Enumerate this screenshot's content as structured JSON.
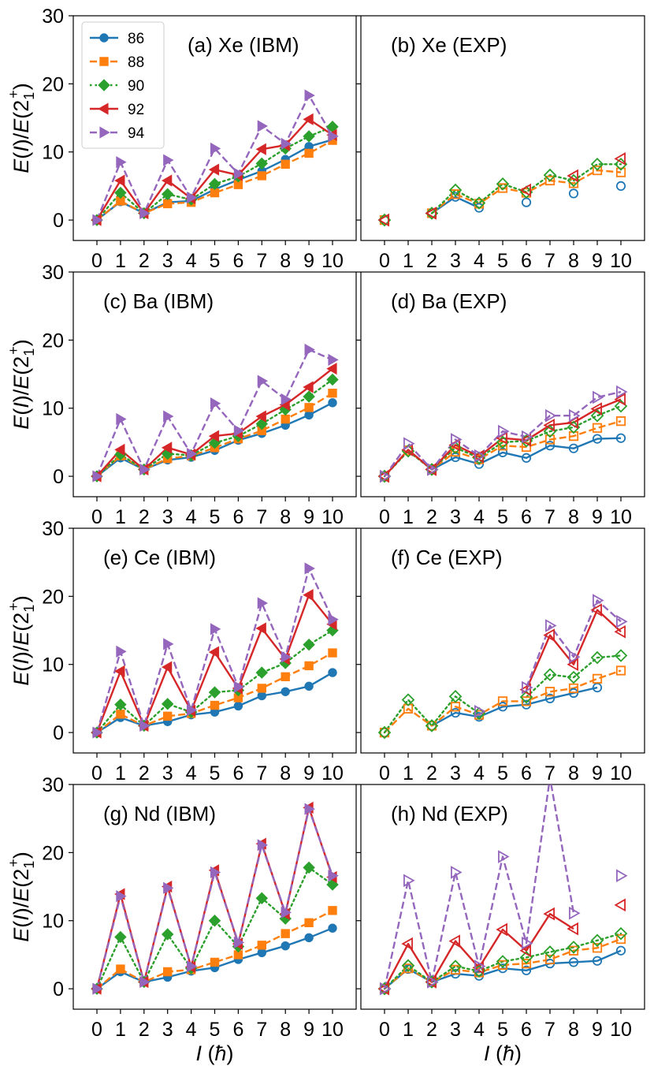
{
  "chart_data": {
    "type": "line",
    "xlabel": "I (ħ)",
    "ylabel": "E(I)/E(2_1^+)",
    "x": [
      0,
      1,
      2,
      3,
      4,
      5,
      6,
      7,
      8,
      9,
      10
    ],
    "xticks": [
      "0",
      "1",
      "2",
      "3",
      "4",
      "5",
      "6",
      "7",
      "8",
      "9",
      "10"
    ],
    "ylim": [
      -3,
      30
    ],
    "yticks": [
      0,
      10,
      20,
      30
    ],
    "ytick_labels": [
      "0",
      "10",
      "20",
      "30"
    ],
    "legend": {
      "location": "top-left of panel (a)",
      "entries": [
        {
          "name": "86",
          "color": "#1f77b4",
          "marker": "circle",
          "linestyle": "solid"
        },
        {
          "name": "88",
          "color": "#ff7f0e",
          "marker": "square",
          "linestyle": "dashed"
        },
        {
          "name": "90",
          "color": "#2ca02c",
          "marker": "diamond",
          "linestyle": "dotted"
        },
        {
          "name": "92",
          "color": "#d62728",
          "marker": "triangle-left",
          "linestyle": "solid"
        },
        {
          "name": "94",
          "color": "#9467bd",
          "marker": "triangle-right",
          "linestyle": "dashed"
        }
      ]
    },
    "panels": [
      {
        "title": "(a) Xe (IBM)",
        "filled": true,
        "series": [
          {
            "name": "86",
            "values": [
              0,
              2.7,
              1,
              2.6,
              2.8,
              4.5,
              5.9,
              7.2,
              8.9,
              10.8,
              11.8
            ]
          },
          {
            "name": "88",
            "values": [
              0,
              2.8,
              1,
              2.4,
              2.6,
              4.0,
              5.2,
              6.5,
              8.2,
              9.8,
              11.7
            ]
          },
          {
            "name": "90",
            "values": [
              0,
              4.0,
              1,
              3.8,
              3.0,
              5.3,
              6.4,
              8.3,
              10.5,
              12.3,
              13.7
            ]
          },
          {
            "name": "92",
            "values": [
              0,
              5.8,
              1,
              5.8,
              3.2,
              7.4,
              6.6,
              10.4,
              11.0,
              14.8,
              12.5
            ]
          },
          {
            "name": "94",
            "values": [
              0,
              8.5,
              1,
              8.8,
              3.3,
              10.5,
              6.8,
              13.8,
              11.2,
              18.3,
              12.3
            ]
          }
        ]
      },
      {
        "title": "(b) Xe (EXP)",
        "filled": false,
        "series": [
          {
            "name": "86",
            "values": [
              0,
              null,
              1,
              3.4,
              1.8,
              null,
              2.6,
              null,
              3.9,
              null,
              5.0
            ]
          },
          {
            "name": "88",
            "values": [
              0,
              null,
              1,
              3.8,
              2.4,
              4.7,
              4.0,
              5.8,
              5.4,
              7.3,
              7.0
            ]
          },
          {
            "name": "90",
            "values": [
              0,
              null,
              1,
              4.4,
              2.5,
              5.3,
              4.1,
              6.6,
              5.8,
              8.2,
              8.2
            ]
          },
          {
            "name": "92",
            "values": [
              0,
              null,
              1,
              null,
              null,
              null,
              4.4,
              null,
              6.5,
              null,
              9.0
            ]
          },
          {
            "name": "94",
            "values": [
              null,
              null,
              null,
              null,
              null,
              null,
              null,
              null,
              null,
              null,
              null
            ]
          }
        ]
      },
      {
        "title": "(c) Ba (IBM)",
        "filled": true,
        "series": [
          {
            "name": "86",
            "values": [
              0,
              2.7,
              1,
              2.4,
              2.8,
              3.8,
              5.3,
              6.3,
              7.5,
              9.0,
              10.8
            ]
          },
          {
            "name": "88",
            "values": [
              0,
              3.0,
              1,
              2.6,
              3.0,
              4.2,
              5.5,
              6.7,
              8.4,
              10.1,
              12.2
            ]
          },
          {
            "name": "90",
            "values": [
              0,
              3.2,
              1,
              3.3,
              3.1,
              4.9,
              5.9,
              7.7,
              9.8,
              11.7,
              14.2
            ]
          },
          {
            "name": "92",
            "values": [
              0,
              3.9,
              1,
              4.2,
              3.2,
              5.9,
              6.3,
              8.8,
              10.5,
              13.1,
              15.8
            ]
          },
          {
            "name": "94",
            "values": [
              0,
              8.4,
              1,
              8.8,
              3.3,
              10.7,
              6.7,
              14.0,
              11.3,
              18.6,
              17.1
            ]
          }
        ]
      },
      {
        "title": "(d) Ba (EXP)",
        "filled": false,
        "series": [
          {
            "name": "86",
            "values": [
              0,
              null,
              1,
              2.8,
              1.8,
              3.5,
              2.7,
              4.5,
              4.1,
              5.5,
              5.6
            ]
          },
          {
            "name": "88",
            "values": [
              0,
              3.8,
              1,
              3.6,
              2.5,
              4.5,
              4.3,
              5.4,
              5.9,
              7.1,
              8.1
            ]
          },
          {
            "name": "90",
            "values": [
              0,
              3.7,
              1,
              4.2,
              2.7,
              5.0,
              5.2,
              6.6,
              7.2,
              8.9,
              10.3
            ]
          },
          {
            "name": "92",
            "values": [
              0,
              3.9,
              1,
              4.6,
              2.9,
              5.6,
              5.3,
              7.5,
              7.9,
              9.9,
              11.3
            ]
          },
          {
            "name": "94",
            "values": [
              0,
              4.8,
              1,
              5.4,
              3.0,
              6.6,
              5.8,
              8.9,
              8.9,
              11.6,
              12.4
            ]
          }
        ]
      },
      {
        "title": "(e) Ce (IBM)",
        "filled": true,
        "series": [
          {
            "name": "86",
            "values": [
              0,
              2.2,
              1,
              1.6,
              2.6,
              3.0,
              3.9,
              5.4,
              6.0,
              6.8,
              8.8
            ]
          },
          {
            "name": "88",
            "values": [
              0,
              2.7,
              1,
              2.4,
              2.8,
              4.0,
              5.1,
              6.5,
              8.2,
              9.8,
              11.7
            ]
          },
          {
            "name": "90",
            "values": [
              0,
              4.1,
              1,
              4.2,
              3.0,
              5.9,
              6.2,
              8.8,
              10.2,
              12.9,
              15.0
            ]
          },
          {
            "name": "92",
            "values": [
              0,
              9.0,
              1,
              9.6,
              3.2,
              11.8,
              6.5,
              15.3,
              10.8,
              20.2,
              15.9
            ]
          },
          {
            "name": "94",
            "values": [
              0,
              11.9,
              1,
              13.0,
              3.3,
              15.2,
              6.7,
              19.0,
              11.1,
              24.1,
              16.6
            ]
          }
        ]
      },
      {
        "title": "(f) Ce (EXP)",
        "filled": false,
        "series": [
          {
            "name": "86",
            "values": [
              0,
              null,
              1,
              2.9,
              2.3,
              3.8,
              4.1,
              5.0,
              5.8,
              6.6,
              null
            ]
          },
          {
            "name": "88",
            "values": [
              0,
              3.5,
              1,
              3.8,
              2.6,
              4.6,
              4.6,
              6.0,
              6.5,
              7.9,
              9.1
            ]
          },
          {
            "name": "90",
            "values": [
              0,
              4.8,
              1,
              5.3,
              2.8,
              null,
              5.2,
              8.5,
              8.1,
              11.0,
              11.3
            ]
          },
          {
            "name": "92",
            "values": [
              null,
              null,
              null,
              null,
              null,
              null,
              6.3,
              14.3,
              10.0,
              18.0,
              14.8
            ]
          },
          {
            "name": "94",
            "values": [
              null,
              null,
              null,
              null,
              3.1,
              null,
              6.6,
              15.7,
              11.1,
              19.4,
              16.3
            ]
          }
        ]
      },
      {
        "title": "(g) Nd (IBM)",
        "filled": true,
        "series": [
          {
            "name": "86",
            "values": [
              0,
              2.5,
              1,
              1.7,
              2.6,
              3.1,
              4.3,
              5.3,
              6.3,
              7.5,
              8.9
            ]
          },
          {
            "name": "88",
            "values": [
              0,
              2.9,
              1,
              2.5,
              2.8,
              3.9,
              5.0,
              6.4,
              8.1,
              9.7,
              11.5
            ]
          },
          {
            "name": "90",
            "values": [
              0,
              7.6,
              1,
              8.0,
              3.0,
              10.0,
              6.2,
              13.3,
              10.3,
              17.8,
              15.3
            ]
          },
          {
            "name": "92",
            "values": [
              0,
              13.9,
              1,
              15.0,
              3.2,
              17.4,
              6.6,
              21.3,
              11.0,
              26.6,
              16.4
            ]
          },
          {
            "name": "94",
            "values": [
              0,
              13.6,
              1,
              14.8,
              3.3,
              17.1,
              6.8,
              21.1,
              11.2,
              26.4,
              16.6
            ]
          }
        ]
      },
      {
        "title": "(h) Nd (EXP)",
        "filled": false,
        "series": [
          {
            "name": "86",
            "values": [
              0,
              2.9,
              1,
              2.2,
              1.9,
              3.0,
              2.7,
              3.7,
              3.9,
              4.1,
              5.6
            ]
          },
          {
            "name": "88",
            "values": [
              0,
              3.0,
              1,
              2.8,
              2.4,
              3.5,
              3.7,
              4.3,
              5.6,
              6.0,
              7.3
            ]
          },
          {
            "name": "90",
            "values": [
              0,
              3.4,
              1,
              3.3,
              2.6,
              4.0,
              4.6,
              5.4,
              6.1,
              7.1,
              8.1
            ]
          },
          {
            "name": "92",
            "values": [
              0,
              6.6,
              1,
              7.0,
              3.1,
              8.7,
              5.6,
              11.0,
              8.8,
              null,
              12.3
            ]
          },
          {
            "name": "94",
            "values": [
              0,
              15.9,
              1,
              17.1,
              3.3,
              19.4,
              6.7,
              31.0,
              11.1,
              null,
              16.6
            ]
          }
        ]
      }
    ]
  }
}
